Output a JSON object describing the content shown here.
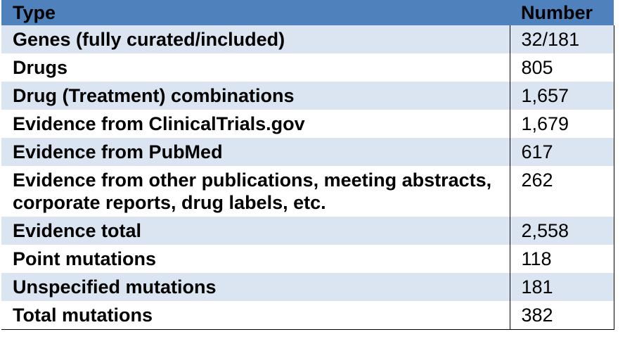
{
  "table": {
    "header": [
      "Type",
      "Number"
    ],
    "rows": [
      [
        "Genes (fully curated/included)",
        "32/181"
      ],
      [
        "Drugs",
        "805"
      ],
      [
        "Drug (Treatment) combinations",
        "1,657"
      ],
      [
        "Evidence from ClinicalTrials.gov",
        "1,679"
      ],
      [
        "Evidence from PubMed",
        "617"
      ],
      [
        "Evidence from other publications, meeting abstracts, corporate reports, drug labels, etc.",
        "262"
      ],
      [
        "Evidence total",
        "2,558"
      ],
      [
        "Point mutations",
        "118"
      ],
      [
        "Unspecified mutations",
        "181"
      ],
      [
        "Total mutations",
        "382"
      ]
    ]
  }
}
